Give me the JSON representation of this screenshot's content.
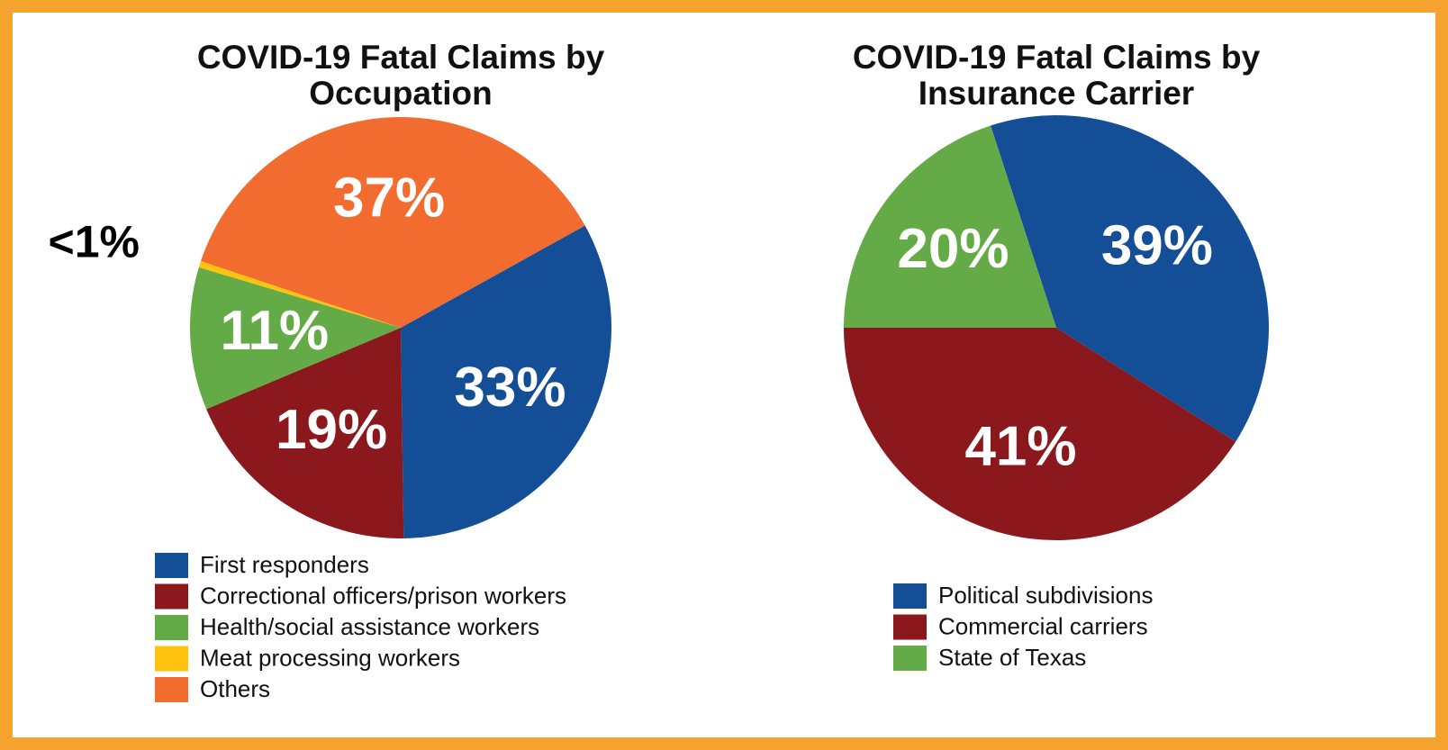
{
  "chart_data": [
    {
      "type": "pie",
      "title": "COVID-19 Fatal Claims by Occupation",
      "categories": [
        "First responders",
        "Correctional officers/prison workers",
        "Health/social assistance workers",
        "Meat processing workers",
        "Others"
      ],
      "values": [
        33,
        19,
        11,
        0.5,
        37
      ],
      "value_labels": [
        "33%",
        "19%",
        "11%",
        "<1%",
        "37%"
      ],
      "colors": [
        "#134e96",
        "#8b181c",
        "#64ab47",
        "#ffc20e",
        "#f26b2f"
      ]
    },
    {
      "type": "pie",
      "title": "COVID-19 Fatal Claims by Insurance Carrier",
      "categories": [
        "Political subdivisions",
        "Commercial carriers",
        "State of Texas"
      ],
      "values": [
        39,
        41,
        20
      ],
      "value_labels": [
        "39%",
        "41%",
        "20%"
      ],
      "colors": [
        "#134e96",
        "#8b181c",
        "#64ab47"
      ]
    }
  ]
}
